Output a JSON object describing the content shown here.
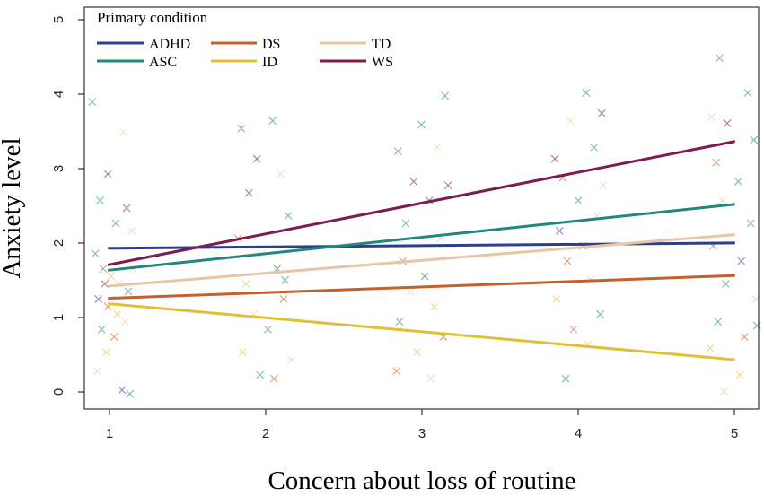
{
  "chart_data": {
    "type": "scatter",
    "title": "",
    "xlabel": "Concern about loss of routine",
    "ylabel": "Anxiety level",
    "xlim": [
      0.85,
      5.15
    ],
    "ylim": [
      -0.15,
      5.15
    ],
    "xticks": [
      "1",
      "2",
      "3",
      "4",
      "5"
    ],
    "yticks": [
      "0",
      "1",
      "2",
      "3",
      "4",
      "5"
    ],
    "grid": false,
    "legend": {
      "title": "Primary condition",
      "placement": "top-left",
      "entries": [
        "ADHD",
        "DS",
        "TD",
        "ASC",
        "ID",
        "WS"
      ]
    },
    "series": [
      {
        "name": "ADHD",
        "color": "#2b3f8c",
        "fit_x": [
          1,
          5
        ],
        "fit_y": [
          1.97,
          2.04
        ]
      },
      {
        "name": "ASC",
        "color": "#22877f",
        "fit_x": [
          1,
          5
        ],
        "fit_y": [
          1.68,
          2.55
        ]
      },
      {
        "name": "DS",
        "color": "#c2612b",
        "fit_x": [
          1,
          5
        ],
        "fit_y": [
          1.31,
          1.61
        ]
      },
      {
        "name": "ID",
        "color": "#e2c036",
        "fit_x": [
          1,
          5
        ],
        "fit_y": [
          1.24,
          0.5
        ]
      },
      {
        "name": "TD",
        "color": "#e8c5a5",
        "fit_x": [
          1,
          5
        ],
        "fit_y": [
          1.47,
          2.15
        ]
      },
      {
        "name": "WS",
        "color": "#7c1d4f",
        "fit_x": [
          1,
          5
        ],
        "fit_y": [
          1.75,
          3.38
        ]
      }
    ],
    "points": [
      {
        "series": "ASC",
        "x": 0.9,
        "y": 3.9
      },
      {
        "series": "ASC",
        "x": 0.95,
        "y": 2.6
      },
      {
        "series": "WS",
        "x": 1.0,
        "y": 2.95
      },
      {
        "series": "ASC",
        "x": 1.05,
        "y": 2.3
      },
      {
        "series": "TD",
        "x": 1.1,
        "y": 3.5
      },
      {
        "series": "ADHD",
        "x": 1.12,
        "y": 2.5
      },
      {
        "series": "TD",
        "x": 1.15,
        "y": 2.2
      },
      {
        "series": "ASC",
        "x": 0.92,
        "y": 1.9
      },
      {
        "series": "DS",
        "x": 0.97,
        "y": 1.7
      },
      {
        "series": "ID",
        "x": 1.02,
        "y": 1.6
      },
      {
        "series": "TD",
        "x": 1.07,
        "y": 1.5
      },
      {
        "series": "ASC",
        "x": 1.13,
        "y": 1.4
      },
      {
        "series": "ADHD",
        "x": 0.94,
        "y": 1.3
      },
      {
        "series": "DS",
        "x": 1.0,
        "y": 1.2
      },
      {
        "series": "ID",
        "x": 1.06,
        "y": 1.1
      },
      {
        "series": "TD",
        "x": 1.11,
        "y": 1.0
      },
      {
        "series": "ASC",
        "x": 0.96,
        "y": 0.9
      },
      {
        "series": "DS",
        "x": 1.04,
        "y": 0.8
      },
      {
        "series": "ID",
        "x": 0.99,
        "y": 0.6
      },
      {
        "series": "TD",
        "x": 0.93,
        "y": 0.35
      },
      {
        "series": "ASC",
        "x": 1.14,
        "y": 0.05
      },
      {
        "series": "ADHD",
        "x": 1.09,
        "y": 0.1
      },
      {
        "series": "WS",
        "x": 0.98,
        "y": 1.5
      },
      {
        "series": "TD",
        "x": 1.16,
        "y": 1.7
      },
      {
        "series": "ASC",
        "x": 1.85,
        "y": 3.55
      },
      {
        "series": "ASC",
        "x": 2.05,
        "y": 3.65
      },
      {
        "series": "WS",
        "x": 1.95,
        "y": 3.15
      },
      {
        "series": "ADHD",
        "x": 1.9,
        "y": 2.7
      },
      {
        "series": "TD",
        "x": 2.1,
        "y": 2.95
      },
      {
        "series": "ASC",
        "x": 2.15,
        "y": 2.4
      },
      {
        "series": "DS",
        "x": 1.83,
        "y": 2.1
      },
      {
        "series": "TD",
        "x": 1.98,
        "y": 1.9
      },
      {
        "series": "ASC",
        "x": 2.08,
        "y": 1.7
      },
      {
        "series": "ID",
        "x": 1.88,
        "y": 1.5
      },
      {
        "series": "DS",
        "x": 2.12,
        "y": 1.3
      },
      {
        "series": "TD",
        "x": 1.93,
        "y": 1.1
      },
      {
        "series": "ASC",
        "x": 2.02,
        "y": 0.9
      },
      {
        "series": "ID",
        "x": 1.86,
        "y": 0.6
      },
      {
        "series": "TD",
        "x": 2.17,
        "y": 0.5
      },
      {
        "series": "ASC",
        "x": 1.97,
        "y": 0.3
      },
      {
        "series": "DS",
        "x": 2.06,
        "y": 0.25
      },
      {
        "series": "ASC",
        "x": 2.13,
        "y": 1.55
      },
      {
        "series": "ASC",
        "x": 3.15,
        "y": 3.98
      },
      {
        "series": "ASC",
        "x": 3.0,
        "y": 3.6
      },
      {
        "series": "ASC",
        "x": 2.85,
        "y": 3.25
      },
      {
        "series": "WS",
        "x": 2.95,
        "y": 2.85
      },
      {
        "series": "TD",
        "x": 3.1,
        "y": 3.3
      },
      {
        "series": "ADHD",
        "x": 3.05,
        "y": 2.6
      },
      {
        "series": "ASC",
        "x": 2.9,
        "y": 2.3
      },
      {
        "series": "TD",
        "x": 3.12,
        "y": 2.1
      },
      {
        "series": "DS",
        "x": 2.88,
        "y": 1.8
      },
      {
        "series": "ASC",
        "x": 3.02,
        "y": 1.6
      },
      {
        "series": "TD",
        "x": 2.93,
        "y": 1.4
      },
      {
        "series": "ID",
        "x": 3.08,
        "y": 1.2
      },
      {
        "series": "ASC",
        "x": 2.86,
        "y": 1.0
      },
      {
        "series": "DS",
        "x": 3.14,
        "y": 0.8
      },
      {
        "series": "ID",
        "x": 2.97,
        "y": 0.6
      },
      {
        "series": "DS",
        "x": 2.84,
        "y": 0.35
      },
      {
        "series": "TD",
        "x": 3.06,
        "y": 0.25
      },
      {
        "series": "WS",
        "x": 3.17,
        "y": 2.8
      },
      {
        "series": "ASC",
        "x": 4.05,
        "y": 4.02
      },
      {
        "series": "TD",
        "x": 3.95,
        "y": 3.65
      },
      {
        "series": "WS",
        "x": 4.15,
        "y": 3.75
      },
      {
        "series": "WS",
        "x": 3.85,
        "y": 3.15
      },
      {
        "series": "ASC",
        "x": 4.1,
        "y": 3.3
      },
      {
        "series": "DS",
        "x": 3.9,
        "y": 2.9
      },
      {
        "series": "ASC",
        "x": 4.0,
        "y": 2.6
      },
      {
        "series": "TD",
        "x": 4.12,
        "y": 2.4
      },
      {
        "series": "ADHD",
        "x": 3.88,
        "y": 2.2
      },
      {
        "series": "ASC",
        "x": 4.03,
        "y": 2.0
      },
      {
        "series": "DS",
        "x": 3.93,
        "y": 1.8
      },
      {
        "series": "TD",
        "x": 4.08,
        "y": 1.55
      },
      {
        "series": "ID",
        "x": 3.86,
        "y": 1.3
      },
      {
        "series": "ASC",
        "x": 4.14,
        "y": 1.1
      },
      {
        "series": "DS",
        "x": 3.97,
        "y": 0.9
      },
      {
        "series": "ID",
        "x": 4.06,
        "y": 0.7
      },
      {
        "series": "ASC",
        "x": 3.92,
        "y": 0.25
      },
      {
        "series": "TD",
        "x": 4.16,
        "y": 2.8
      },
      {
        "series": "ASC",
        "x": 4.9,
        "y": 4.48
      },
      {
        "series": "ASC",
        "x": 5.08,
        "y": 4.02
      },
      {
        "series": "TD",
        "x": 4.85,
        "y": 3.7
      },
      {
        "series": "WS",
        "x": 4.95,
        "y": 3.62
      },
      {
        "series": "ASC",
        "x": 5.12,
        "y": 3.4
      },
      {
        "series": "DS",
        "x": 4.88,
        "y": 3.1
      },
      {
        "series": "ASC",
        "x": 5.02,
        "y": 2.85
      },
      {
        "series": "TD",
        "x": 4.92,
        "y": 2.6
      },
      {
        "series": "ASC",
        "x": 5.1,
        "y": 2.3
      },
      {
        "series": "DS",
        "x": 4.86,
        "y": 2.0
      },
      {
        "series": "ADHD",
        "x": 5.04,
        "y": 1.8
      },
      {
        "series": "ASC",
        "x": 4.94,
        "y": 1.5
      },
      {
        "series": "TD",
        "x": 5.13,
        "y": 1.3
      },
      {
        "series": "ASC",
        "x": 4.89,
        "y": 1.0
      },
      {
        "series": "DS",
        "x": 5.06,
        "y": 0.8
      },
      {
        "series": "ID",
        "x": 4.84,
        "y": 0.65
      },
      {
        "series": "ID",
        "x": 5.03,
        "y": 0.3
      },
      {
        "series": "TD",
        "x": 4.93,
        "y": 0.08
      },
      {
        "series": "ASC",
        "x": 5.14,
        "y": 0.95
      }
    ]
  }
}
